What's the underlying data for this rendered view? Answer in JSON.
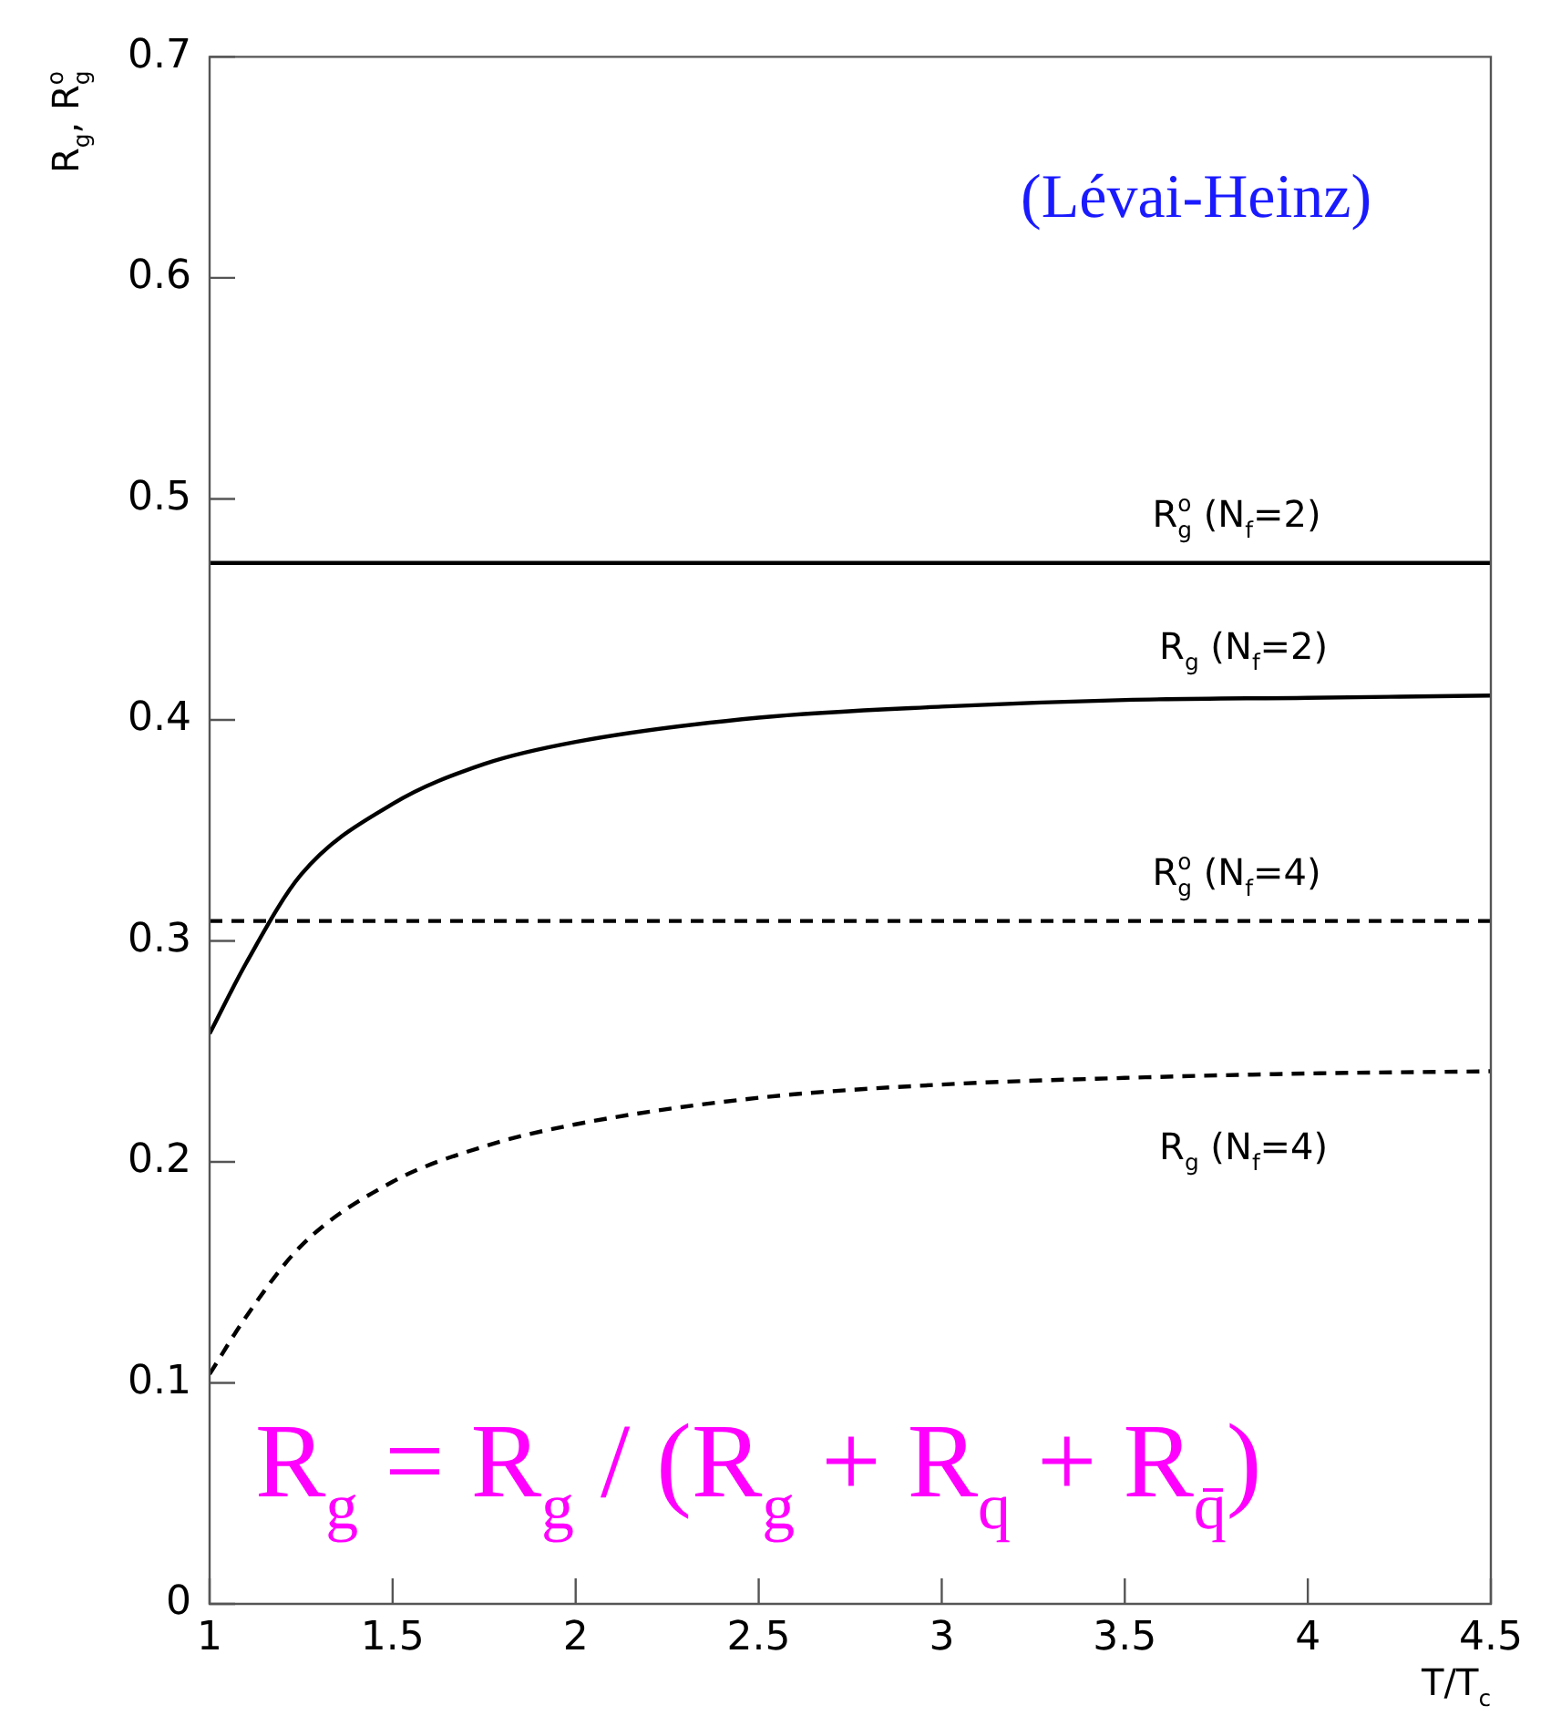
{
  "chart_data": {
    "type": "line",
    "xlabel": "T/T$_{c}$",
    "ylabel": "R$_{g}$, R$_{g}$$^{o}$",
    "xlim": [
      1,
      4.5
    ],
    "xticks": [
      1,
      1.5,
      2,
      2.5,
      3,
      3.5,
      4,
      4.5
    ],
    "ylim": [
      0,
      0.7
    ],
    "yticks": [
      0,
      0.1,
      0.2,
      0.3,
      0.4,
      0.5,
      0.6,
      0.7
    ],
    "grid": false,
    "legend": false,
    "marker": "none",
    "series": [
      {
        "name": "R$_{g}$$^{o}$ (N$_{f}$=2)",
        "color": "#000000",
        "line_style": "solid",
        "x": [
          1,
          4.5
        ],
        "values": [
          0.471,
          0.471
        ]
      },
      {
        "name": "R$_{g}$ (N$_{f}$=2)",
        "color": "#000000",
        "line_style": "solid",
        "x": [
          1,
          1.1,
          1.25,
          1.5,
          1.75,
          2,
          2.5,
          3,
          3.5,
          4,
          4.5
        ],
        "values": [
          0.258,
          0.29,
          0.33,
          0.362,
          0.38,
          0.39,
          0.401,
          0.406,
          0.409,
          0.41,
          0.411
        ]
      },
      {
        "name": "R$_{g}$$^{o}$ (N$_{f}$=4)",
        "color": "#000000",
        "line_style": "dashed",
        "x": [
          1,
          4.5
        ],
        "values": [
          0.309,
          0.309
        ]
      },
      {
        "name": "R$_{g}$ (N$_{f}$=4)",
        "color": "#000000",
        "line_style": "dashed",
        "x": [
          1,
          1.1,
          1.25,
          1.5,
          1.75,
          2,
          2.5,
          3,
          3.5,
          4,
          4.5
        ],
        "values": [
          0.104,
          0.13,
          0.162,
          0.191,
          0.207,
          0.217,
          0.229,
          0.235,
          0.238,
          0.24,
          0.241
        ]
      }
    ],
    "annotations": [
      "(Lévai-Heinz)",
      "R$_{g}$ = R$_{g}$ / (R$_{g}$ + R$_{q}$ + R$_{q̄}$)"
    ]
  }
}
